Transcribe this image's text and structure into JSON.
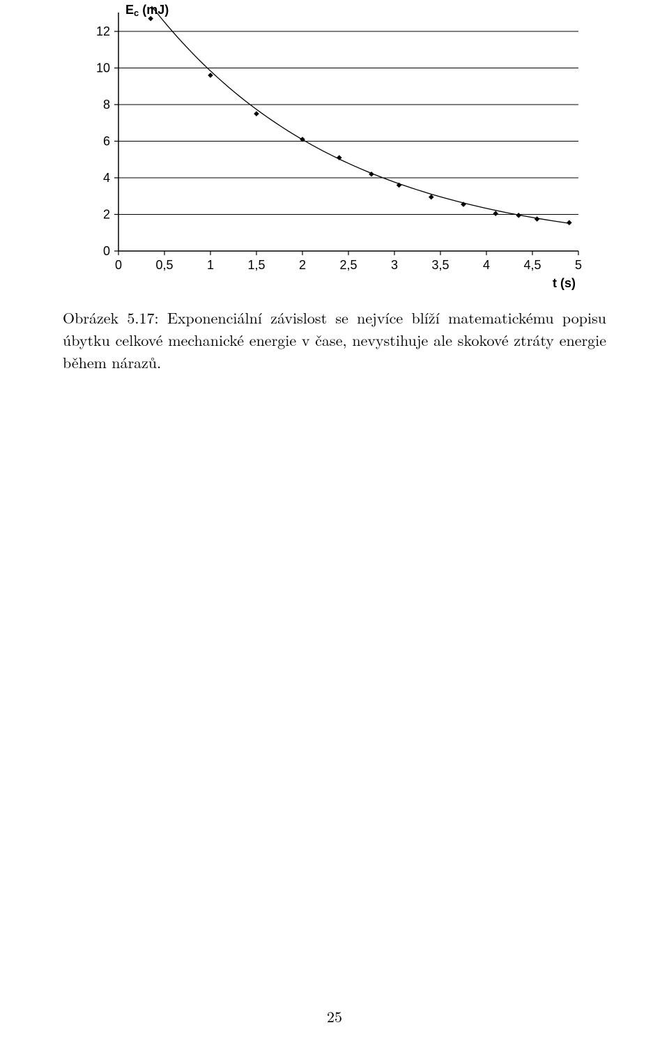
{
  "chart": {
    "type": "scatter+line",
    "y_axis_label": "E",
    "y_axis_label_sub": "c",
    "y_axis_unit": "(mJ)",
    "x_axis_label": "t (s)",
    "xlim": [
      0,
      5
    ],
    "ylim": [
      0,
      12.8
    ],
    "x_ticks": [
      "0",
      "0,5",
      "1",
      "1,5",
      "2",
      "2,5",
      "3",
      "3,5",
      "4",
      "4,5",
      "5"
    ],
    "y_ticks": [
      "0",
      "2",
      "4",
      "6",
      "8",
      "10",
      "12"
    ],
    "curve_color": "#000000",
    "curve_width": 1.3,
    "marker_color": "#000000",
    "marker_size": 3.8,
    "axis_color": "#000000",
    "grid_color": "#000000",
    "grid_width": 0.9,
    "tick_font_size": 18,
    "axis_label_font_size": 18,
    "points": [
      {
        "x": 0.35,
        "y": 12.7
      },
      {
        "x": 1.0,
        "y": 9.6
      },
      {
        "x": 1.5,
        "y": 7.5
      },
      {
        "x": 2.0,
        "y": 6.1
      },
      {
        "x": 2.4,
        "y": 5.1
      },
      {
        "x": 2.75,
        "y": 4.2
      },
      {
        "x": 3.05,
        "y": 3.6
      },
      {
        "x": 3.4,
        "y": 2.95
      },
      {
        "x": 3.75,
        "y": 2.55
      },
      {
        "x": 4.1,
        "y": 2.05
      },
      {
        "x": 4.35,
        "y": 1.95
      },
      {
        "x": 4.55,
        "y": 1.75
      },
      {
        "x": 4.9,
        "y": 1.55
      }
    ],
    "curve": {
      "A": 15.9,
      "k": 0.48,
      "x_start": 0.36,
      "x_end": 4.88,
      "samples": 80
    }
  },
  "caption": "Obrázek 5.17: Exponenciální závislost se nejvíce blíží matematickému popisu úbytku celkové mechanické energie v čase, nevystihuje ale skokové ztráty energie během nárazů.",
  "page_number": "25"
}
